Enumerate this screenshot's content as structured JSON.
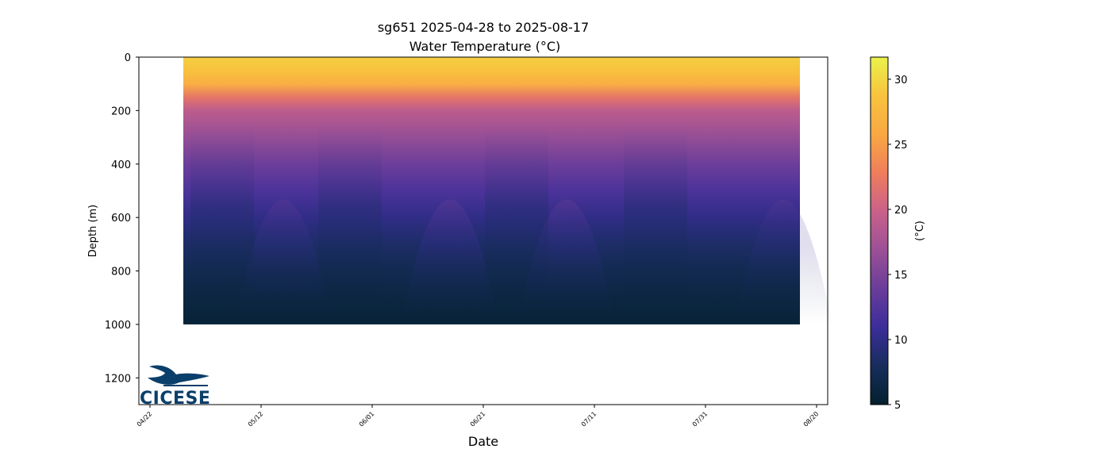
{
  "chart_data": {
    "type": "heatmap",
    "title": "sg651 2025-04-28 to 2025-08-17",
    "subtitle": "Water Temperature (°C)",
    "xlabel": "Date",
    "ylabel": "Depth (m)",
    "x_start": "2025-04-28",
    "x_end": "2025-08-17",
    "xlim": [
      "2025-04-20",
      "2025-08-22"
    ],
    "xticks": [
      "04/22",
      "05/12",
      "06/01",
      "06/21",
      "07/11",
      "07/31",
      "08/20"
    ],
    "xtick_dates": [
      "2025-04-22",
      "2025-05-12",
      "2025-06-01",
      "2025-06-21",
      "2025-07-11",
      "2025-07-31",
      "2025-08-20"
    ],
    "ylim": [
      1300,
      0
    ],
    "yticks": [
      0,
      200,
      400,
      600,
      800,
      1000,
      1200
    ],
    "max_depth": 1000,
    "colorbar": {
      "label": "(°C)",
      "range": [
        5,
        31.7
      ],
      "ticks": [
        5,
        10,
        15,
        20,
        25,
        30
      ],
      "colormap": "thermal",
      "stops": [
        "#04202e",
        "#172d5c",
        "#3b2d9a",
        "#6a3d9a",
        "#9b5096",
        "#c9618a",
        "#ef7d5c",
        "#f9a843",
        "#f8c33e",
        "#e9f24a"
      ]
    },
    "temperature_profile": [
      {
        "depth": 0,
        "temp": 29.5
      },
      {
        "depth": 50,
        "temp": 28.5
      },
      {
        "depth": 100,
        "temp": 26.5
      },
      {
        "depth": 150,
        "temp": 22
      },
      {
        "depth": 200,
        "temp": 19
      },
      {
        "depth": 300,
        "temp": 16.5
      },
      {
        "depth": 400,
        "temp": 14
      },
      {
        "depth": 500,
        "temp": 12
      },
      {
        "depth": 600,
        "temp": 10
      },
      {
        "depth": 700,
        "temp": 8.5
      },
      {
        "depth": 800,
        "temp": 7.2
      },
      {
        "depth": 900,
        "temp": 6.3
      },
      {
        "depth": 1000,
        "temp": 5.6
      }
    ],
    "warm_intrusions": [
      {
        "date": "2025-05-16",
        "strength": 0.45
      },
      {
        "date": "2025-06-15",
        "strength": 0.6
      },
      {
        "date": "2025-07-06",
        "strength": 0.55
      },
      {
        "date": "2025-08-14",
        "strength": 0.35
      }
    ]
  },
  "logo": {
    "text": "CICESE",
    "color": "#0b3f6b"
  }
}
